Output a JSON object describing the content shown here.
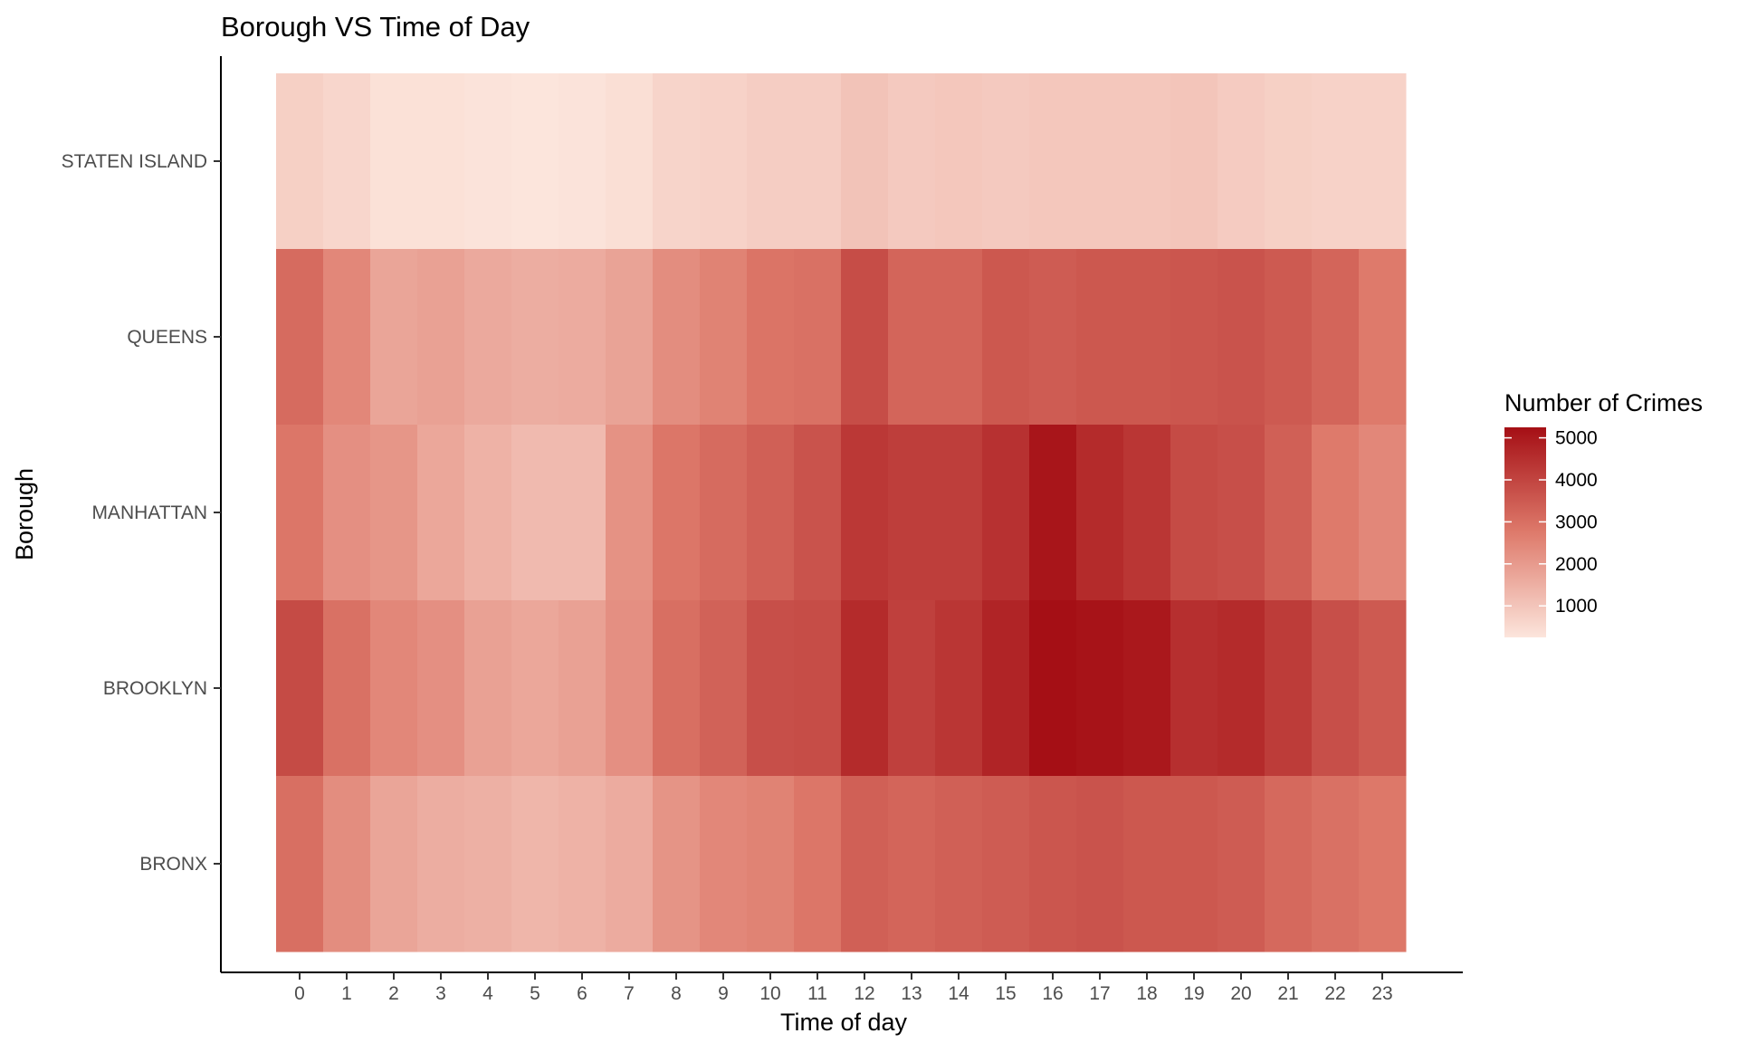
{
  "chart_data": {
    "type": "heatmap",
    "title": "Borough VS Time of Day",
    "xlabel": "Time of day",
    "ylabel": "Borough",
    "x": [
      "0",
      "1",
      "2",
      "3",
      "4",
      "5",
      "6",
      "7",
      "8",
      "9",
      "10",
      "11",
      "12",
      "13",
      "14",
      "15",
      "16",
      "17",
      "18",
      "19",
      "20",
      "21",
      "22",
      "23"
    ],
    "y": [
      "STATEN ISLAND",
      "QUEENS",
      "MANHATTAN",
      "BROOKLYN",
      "BRONX"
    ],
    "values": [
      [
        750,
        600,
        350,
        350,
        300,
        250,
        300,
        400,
        650,
        700,
        800,
        800,
        1050,
        900,
        950,
        900,
        950,
        950,
        950,
        1000,
        850,
        750,
        700,
        700
      ],
      [
        3100,
        2450,
        1750,
        1850,
        1650,
        1550,
        1600,
        1800,
        2300,
        2550,
        2900,
        2950,
        3800,
        3250,
        3250,
        3550,
        3450,
        3550,
        3550,
        3600,
        3650,
        3500,
        3250,
        2750
      ],
      [
        2850,
        2250,
        2100,
        1700,
        1450,
        1250,
        1250,
        2200,
        2850,
        3100,
        3350,
        3650,
        4300,
        4150,
        4150,
        4450,
        5100,
        4600,
        4350,
        3850,
        3750,
        3350,
        2750,
        2450
      ],
      [
        3850,
        2950,
        2450,
        2250,
        1850,
        1700,
        1850,
        2250,
        3000,
        3300,
        3750,
        3800,
        4600,
        4100,
        4350,
        4750,
        5250,
        5150,
        5050,
        4500,
        4600,
        4200,
        3750,
        3500
      ],
      [
        3000,
        2300,
        1750,
        1550,
        1500,
        1350,
        1450,
        1600,
        2150,
        2450,
        2550,
        2850,
        3350,
        3250,
        3350,
        3450,
        3600,
        3650,
        3550,
        3550,
        3450,
        3150,
        2950,
        2800
      ]
    ],
    "color_range": {
      "min": 250,
      "max": 5250,
      "low_color": "#fce5dc",
      "high_color": "#a50f15"
    },
    "legend": {
      "title": "Number of Crimes",
      "ticks": [
        1000,
        2000,
        3000,
        4000,
        5000
      ],
      "tick_labels": [
        "1000",
        "2000",
        "3000",
        "4000",
        "5000"
      ],
      "position": "right"
    },
    "grid": false
  }
}
